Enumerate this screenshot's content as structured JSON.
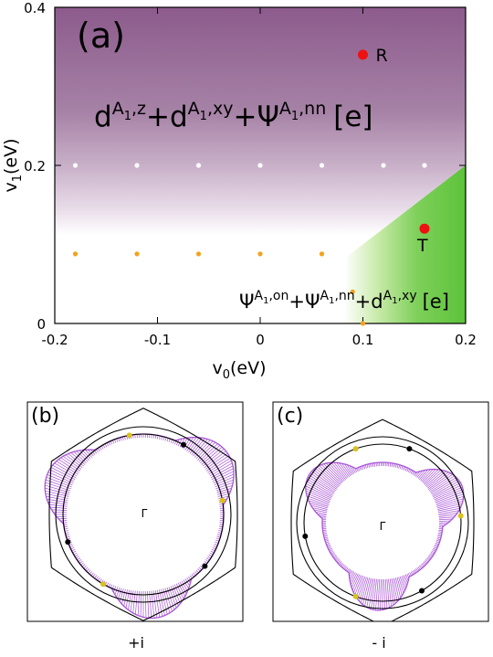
{
  "colors": {
    "purple_top": "#8c5b8c",
    "purple_mid": "#b593b5",
    "green": "#5cc23a",
    "point_red": "#ee1111",
    "dot_orange": "#f5a21b",
    "dot_white": "#ffffff",
    "fs_purple": "#a855d6",
    "marker_black": "#000000",
    "marker_yellow": "#d9c21c"
  },
  "panel_a": {
    "label": "(a)",
    "xlabel": "v",
    "xlabel_sub": "0",
    "xlabel_unit": "(eV)",
    "ylabel": "v",
    "ylabel_sub": "1",
    "ylabel_unit": "(eV)",
    "region_upper": {
      "t1": "d",
      "t1_sup": "A",
      "t1_sup_sub": "1",
      "t1_sup_tail": ",z",
      "op1": "+",
      "t2": "d",
      "t2_sup": "A",
      "t2_sup_sub": "1",
      "t2_sup_tail": ",xy",
      "op2": "+",
      "t3": "Ψ",
      "t3_sup": "A",
      "t3_sup_sub": "1",
      "t3_sup_tail": ",nn",
      "tag": "[e]"
    },
    "region_lower": {
      "t1": "Ψ",
      "t1_sup": "A",
      "t1_sup_sub": "1",
      "t1_sup_tail": ",on",
      "op1": "+",
      "t2": "Ψ",
      "t2_sup": "A",
      "t2_sup_sub": "1",
      "t2_sup_tail": ",nn",
      "op2": "+",
      "t3": "d",
      "t3_sup": "A",
      "t3_sup_sub": "1",
      "t3_sup_tail": ",xy",
      "tag": "[e]"
    }
  },
  "panel_b": {
    "label": "(b)",
    "center_label": "Γ",
    "caption": "+i"
  },
  "panel_c": {
    "label": "(c)",
    "center_label": "Γ",
    "caption": "- i"
  },
  "chart_data": [
    {
      "type": "scatter",
      "xlim": [
        -0.2,
        0.2
      ],
      "ylim": [
        0,
        0.4
      ],
      "x_ticks": [
        -0.2,
        -0.1,
        0,
        0.1,
        0.2
      ],
      "x_tick_labels": [
        "-0.2",
        "-0.1",
        "0",
        "0.1",
        "0.2"
      ],
      "y_ticks": [
        0,
        0.2,
        0.4
      ],
      "y_tick_labels": [
        "0",
        "0.2",
        "0.4"
      ],
      "phase_boundary": [
        [
          0.085,
          0.085
        ],
        [
          0.2,
          0.2
        ]
      ],
      "lower_phase_top": 0.085,
      "grid": false,
      "series": [
        {
          "points": [
            [
              0.1,
              0.34
            ],
            [
              0.16,
              0.12
            ]
          ],
          "point_labels": [
            "R",
            "T"
          ],
          "color": "#ee1111"
        },
        {
          "points": [
            [
              -0.18,
              0.2
            ],
            [
              -0.12,
              0.2
            ],
            [
              -0.06,
              0.2
            ],
            [
              0,
              0.2
            ],
            [
              0.06,
              0.2
            ],
            [
              0.12,
              0.2
            ],
            [
              0.16,
              0.2
            ]
          ],
          "color": "#ffffff"
        },
        {
          "points": [
            [
              -0.18,
              0.088
            ],
            [
              -0.12,
              0.088
            ],
            [
              -0.06,
              0.088
            ],
            [
              0,
              0.088
            ],
            [
              0.06,
              0.088
            ],
            [
              0.09,
              0.04
            ],
            [
              0.1,
              0
            ]
          ],
          "color": "#f5a21b"
        }
      ]
    },
    {
      "type": "scatter",
      "panel": "(b)",
      "markers_black_deg": [
        60,
        200,
        320
      ],
      "markers_yellow_deg": [
        100,
        10,
        240
      ]
    },
    {
      "type": "scatter",
      "panel": "(c)",
      "markers_black_deg": [
        70,
        190,
        300
      ],
      "markers_yellow_deg": [
        110,
        5,
        250
      ]
    }
  ]
}
